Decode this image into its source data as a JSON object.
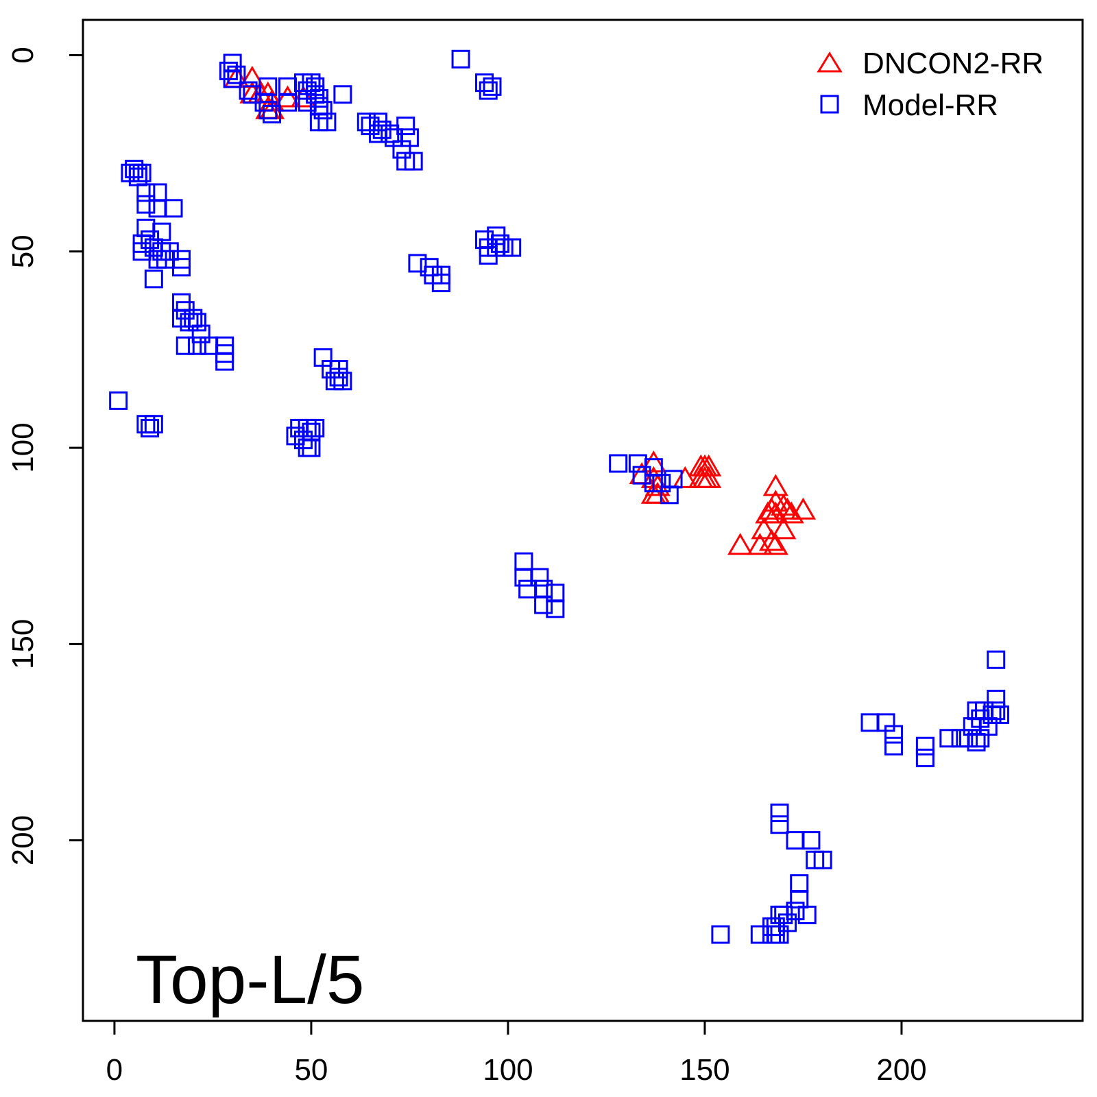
{
  "chart_data": {
    "type": "scatter",
    "annotation": "Top-L/5",
    "xlim": [
      -8,
      246
    ],
    "ylim": [
      246,
      -9
    ],
    "y_reversed": true,
    "x_ticks": [
      0,
      50,
      100,
      150,
      200
    ],
    "y_ticks": [
      0,
      50,
      100,
      150,
      200
    ],
    "x_tick_labels": [
      "0",
      "50",
      "100",
      "150",
      "200"
    ],
    "y_tick_labels": [
      "0",
      "50",
      "100",
      "150",
      "200"
    ],
    "legend_position": "top-right",
    "grid": false,
    "series": [
      {
        "name": "DNCON2-RR",
        "marker": "triangle",
        "color": "#ff0000",
        "points": [
          [
            31,
            6
          ],
          [
            35,
            6
          ],
          [
            35,
            10
          ],
          [
            37,
            10
          ],
          [
            39,
            10
          ],
          [
            40,
            12
          ],
          [
            40,
            14
          ],
          [
            39,
            14
          ],
          [
            44,
            11
          ],
          [
            48,
            11
          ],
          [
            137,
            104
          ],
          [
            137,
            108
          ],
          [
            134,
            107
          ],
          [
            138,
            110
          ],
          [
            138,
            112
          ],
          [
            137,
            112
          ],
          [
            145,
            108
          ],
          [
            149,
            105
          ],
          [
            150,
            105
          ],
          [
            151,
            105
          ],
          [
            149,
            108
          ],
          [
            150,
            108
          ],
          [
            151,
            108
          ],
          [
            168,
            110
          ],
          [
            168,
            114
          ],
          [
            170,
            115
          ],
          [
            171,
            116
          ],
          [
            172,
            117
          ],
          [
            175,
            116
          ],
          [
            167,
            116
          ],
          [
            168,
            117
          ],
          [
            166,
            117
          ],
          [
            170,
            121
          ],
          [
            165,
            121
          ],
          [
            167,
            124
          ],
          [
            168,
            125
          ],
          [
            164,
            125
          ],
          [
            159,
            125
          ]
        ]
      },
      {
        "name": "Model-RR",
        "marker": "square",
        "color": "#0000ff",
        "points": [
          [
            29,
            4
          ],
          [
            30,
            2
          ],
          [
            30,
            6
          ],
          [
            31,
            5
          ],
          [
            34,
            9
          ],
          [
            35,
            10
          ],
          [
            38,
            12
          ],
          [
            39,
            8
          ],
          [
            39,
            14
          ],
          [
            40,
            15
          ],
          [
            44,
            8
          ],
          [
            44,
            12
          ],
          [
            48,
            7
          ],
          [
            49,
            9
          ],
          [
            49,
            12
          ],
          [
            50,
            7
          ],
          [
            51,
            8
          ],
          [
            51,
            10
          ],
          [
            52,
            11
          ],
          [
            52,
            13
          ],
          [
            53,
            14
          ],
          [
            52,
            17
          ],
          [
            54,
            17
          ],
          [
            58,
            10
          ],
          [
            88,
            1
          ],
          [
            94,
            7
          ],
          [
            95,
            9
          ],
          [
            96,
            8
          ],
          [
            64,
            17
          ],
          [
            65,
            18
          ],
          [
            67,
            17
          ],
          [
            67,
            20
          ],
          [
            68,
            19
          ],
          [
            70,
            20
          ],
          [
            71,
            21
          ],
          [
            74,
            18
          ],
          [
            75,
            21
          ],
          [
            73,
            24
          ],
          [
            74,
            27
          ],
          [
            76,
            27
          ],
          [
            4,
            30
          ],
          [
            5,
            29
          ],
          [
            6,
            30
          ],
          [
            6,
            31
          ],
          [
            7,
            30
          ],
          [
            8,
            35
          ],
          [
            8,
            38
          ],
          [
            11,
            35
          ],
          [
            11,
            39
          ],
          [
            15,
            39
          ],
          [
            8,
            44
          ],
          [
            7,
            48
          ],
          [
            7,
            50
          ],
          [
            9,
            47
          ],
          [
            10,
            49
          ],
          [
            11,
            52
          ],
          [
            12,
            45
          ],
          [
            12,
            50
          ],
          [
            13,
            52
          ],
          [
            14,
            50
          ],
          [
            17,
            52
          ],
          [
            17,
            54
          ],
          [
            10,
            57
          ],
          [
            94,
            47
          ],
          [
            95,
            49
          ],
          [
            95,
            51
          ],
          [
            97,
            46
          ],
          [
            97,
            49
          ],
          [
            98,
            48
          ],
          [
            99,
            49
          ],
          [
            101,
            49
          ],
          [
            77,
            53
          ],
          [
            80,
            54
          ],
          [
            81,
            56
          ],
          [
            83,
            56
          ],
          [
            83,
            58
          ],
          [
            17,
            63
          ],
          [
            18,
            65
          ],
          [
            17,
            67
          ],
          [
            19,
            68
          ],
          [
            20,
            67
          ],
          [
            21,
            68
          ],
          [
            22,
            71
          ],
          [
            18,
            74
          ],
          [
            21,
            74
          ],
          [
            24,
            74
          ],
          [
            28,
            74
          ],
          [
            28,
            76
          ],
          [
            28,
            78
          ],
          [
            53,
            77
          ],
          [
            55,
            80
          ],
          [
            57,
            80
          ],
          [
            57,
            82
          ],
          [
            58,
            83
          ],
          [
            56,
            83
          ],
          [
            1,
            88
          ],
          [
            8,
            94
          ],
          [
            9,
            95
          ],
          [
            10,
            94
          ],
          [
            46,
            97
          ],
          [
            47,
            95
          ],
          [
            49,
            95
          ],
          [
            50,
            96
          ],
          [
            51,
            95
          ],
          [
            48,
            98
          ],
          [
            49,
            100
          ],
          [
            50,
            100
          ],
          [
            128,
            104
          ],
          [
            133,
            104
          ],
          [
            134,
            107
          ],
          [
            137,
            105
          ],
          [
            137,
            109
          ],
          [
            139,
            109
          ],
          [
            142,
            108
          ],
          [
            141,
            112
          ],
          [
            104,
            129
          ],
          [
            104,
            133
          ],
          [
            105,
            136
          ],
          [
            108,
            133
          ],
          [
            109,
            136
          ],
          [
            109,
            140
          ],
          [
            112,
            137
          ],
          [
            112,
            141
          ],
          [
            192,
            170
          ],
          [
            196,
            170
          ],
          [
            198,
            173
          ],
          [
            198,
            176
          ],
          [
            206,
            176
          ],
          [
            206,
            179
          ],
          [
            212,
            174
          ],
          [
            215,
            174
          ],
          [
            217,
            174
          ],
          [
            218,
            171
          ],
          [
            219,
            167
          ],
          [
            219,
            175
          ],
          [
            220,
            169
          ],
          [
            220,
            174
          ],
          [
            221,
            167
          ],
          [
            222,
            171
          ],
          [
            223,
            168
          ],
          [
            224,
            164
          ],
          [
            224,
            167
          ],
          [
            225,
            168
          ],
          [
            224,
            154
          ],
          [
            169,
            193
          ],
          [
            169,
            196
          ],
          [
            173,
            200
          ],
          [
            177,
            200
          ],
          [
            178,
            205
          ],
          [
            180,
            205
          ],
          [
            174,
            211
          ],
          [
            174,
            215
          ],
          [
            173,
            218
          ],
          [
            176,
            219
          ],
          [
            170,
            219
          ],
          [
            169,
            219
          ],
          [
            168,
            222
          ],
          [
            171,
            221
          ],
          [
            169,
            224
          ],
          [
            168,
            224
          ],
          [
            167,
            224
          ],
          [
            167,
            222
          ],
          [
            164,
            224
          ],
          [
            154,
            224
          ]
        ]
      }
    ]
  }
}
